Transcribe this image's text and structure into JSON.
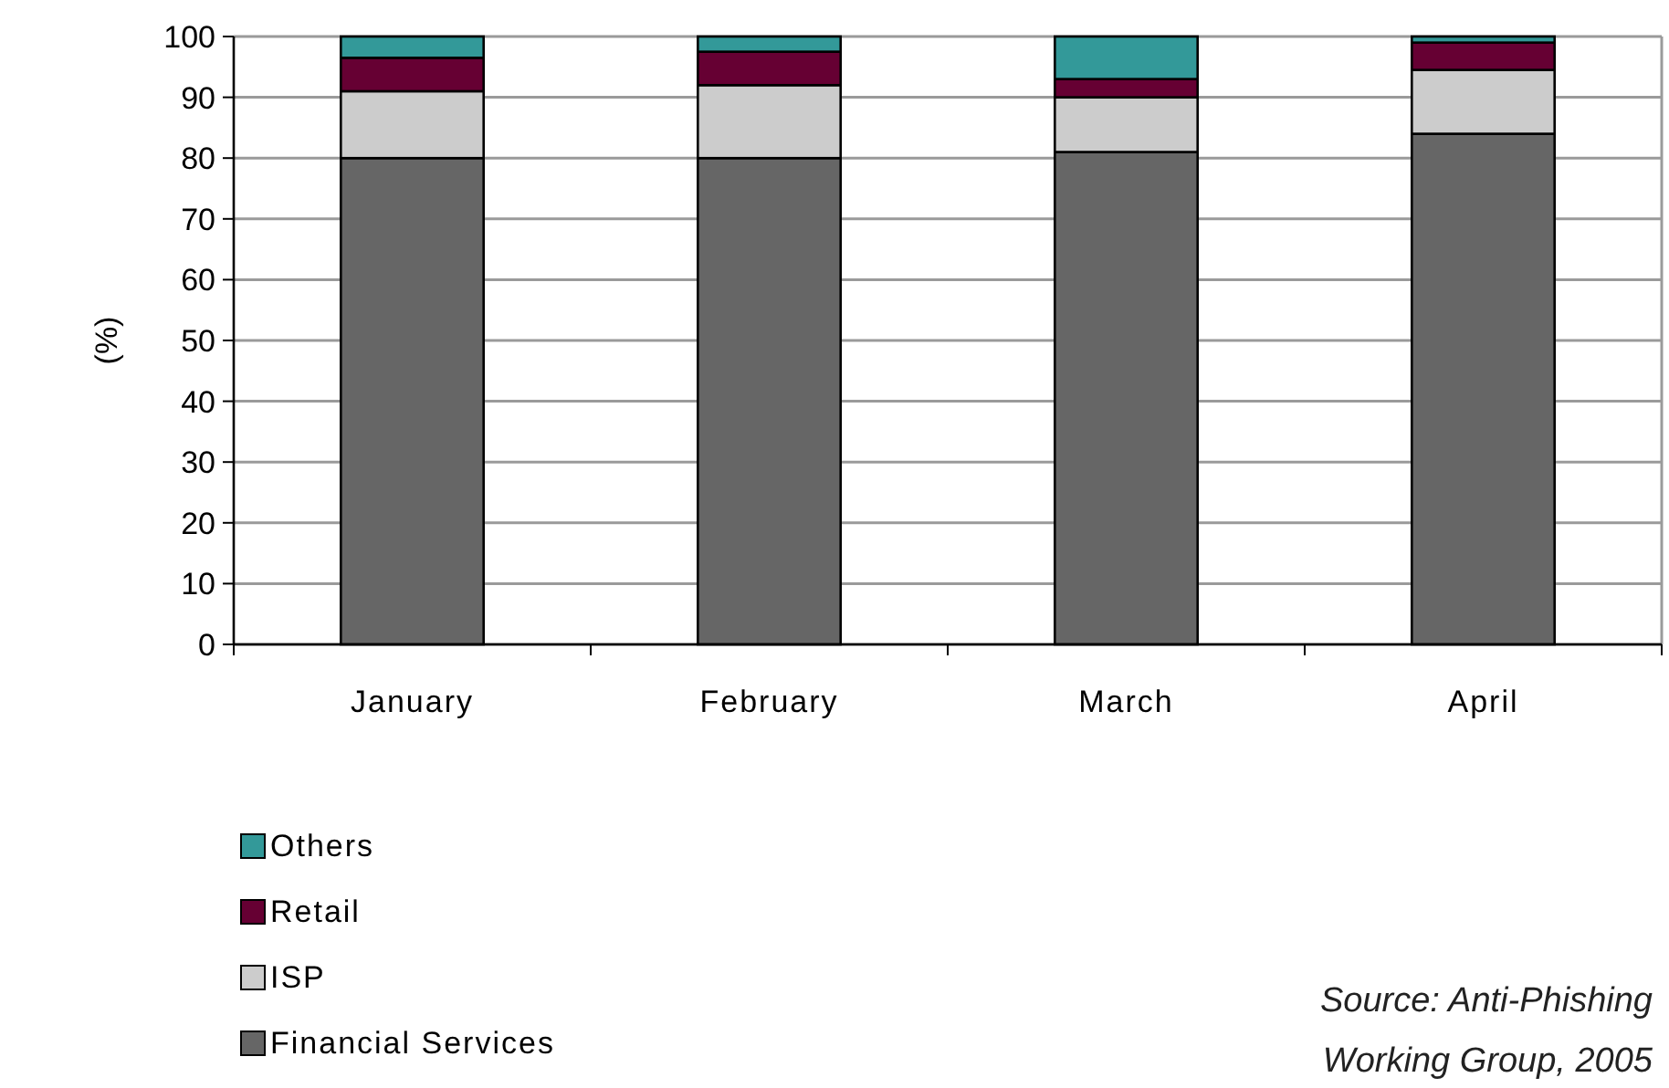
{
  "chart_data": {
    "type": "bar",
    "stacked": true,
    "ylabel": "(%)",
    "categories": [
      "January",
      "February",
      "March",
      "April"
    ],
    "series": [
      {
        "name": "Financial Services",
        "color": "#666666",
        "values": [
          80,
          80,
          81,
          84
        ]
      },
      {
        "name": "ISP",
        "color": "#cccccc",
        "values": [
          11,
          12,
          9,
          10.5
        ]
      },
      {
        "name": "Retail",
        "color": "#660033",
        "values": [
          5.5,
          5.5,
          3,
          4.5
        ]
      },
      {
        "name": "Others",
        "color": "#339999",
        "values": [
          3.5,
          2.5,
          7,
          1
        ]
      }
    ],
    "ylim": [
      0,
      100
    ],
    "yticks": [
      0,
      10,
      20,
      30,
      40,
      50,
      60,
      70,
      80,
      90,
      100
    ],
    "grid": "y",
    "legend": "bottom left",
    "annotations": [
      "Source: Anti-Phishing Working Group, 2005"
    ]
  }
}
